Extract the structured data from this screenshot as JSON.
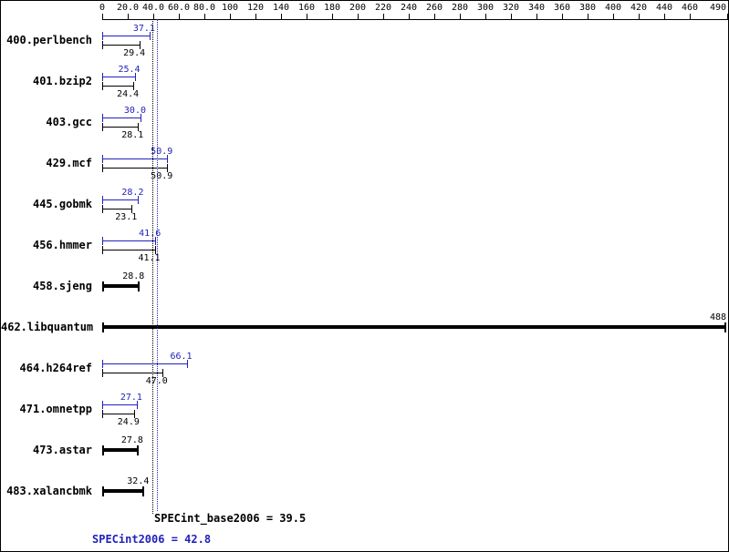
{
  "chart_data": {
    "type": "bar",
    "orientation": "horizontal",
    "title": "",
    "xlabel": "",
    "ylabel": "",
    "grid": false,
    "legend": null,
    "axis": {
      "min": 0,
      "max": 490,
      "position": "top",
      "ticks": [
        0,
        20,
        40,
        60,
        80,
        100,
        120,
        140,
        160,
        180,
        200,
        220,
        240,
        260,
        280,
        300,
        320,
        340,
        360,
        380,
        400,
        420,
        440,
        460,
        490
      ],
      "tick_labels": [
        "0",
        "20.0",
        "40.0",
        "60.0",
        "80.0",
        "100",
        "120",
        "140",
        "160",
        "180",
        "200",
        "220",
        "240",
        "260",
        "280",
        "300",
        "320",
        "340",
        "360",
        "380",
        "400",
        "420",
        "440",
        "460",
        "490"
      ]
    },
    "series_colors": {
      "peak": "#2222bb",
      "base": "#000000"
    },
    "benchmarks": [
      {
        "name": "400.perlbench",
        "peak": "37.1",
        "base": "29.4"
      },
      {
        "name": "401.bzip2",
        "peak": "25.4",
        "base": "24.4"
      },
      {
        "name": "403.gcc",
        "peak": "30.0",
        "base": "28.1"
      },
      {
        "name": "429.mcf",
        "peak": "50.9",
        "base": "50.9"
      },
      {
        "name": "445.gobmk",
        "peak": "28.2",
        "base": "23.1"
      },
      {
        "name": "456.hmmer",
        "peak": "41.6",
        "base": "41.1"
      },
      {
        "name": "458.sjeng",
        "peak": null,
        "base": "28.8"
      },
      {
        "name": "462.libquantum",
        "peak": null,
        "base": "488"
      },
      {
        "name": "464.h264ref",
        "peak": "66.1",
        "base": "47.0"
      },
      {
        "name": "471.omnetpp",
        "peak": "27.1",
        "base": "24.9"
      },
      {
        "name": "473.astar",
        "peak": null,
        "base": "27.8"
      },
      {
        "name": "483.xalancbmk",
        "peak": null,
        "base": "32.4"
      }
    ],
    "means": {
      "base_label": "SPECint_base2006 = 39.5",
      "base_value": 39.5,
      "peak_label": "SPECint2006 = 42.8",
      "peak_value": 42.8
    }
  }
}
